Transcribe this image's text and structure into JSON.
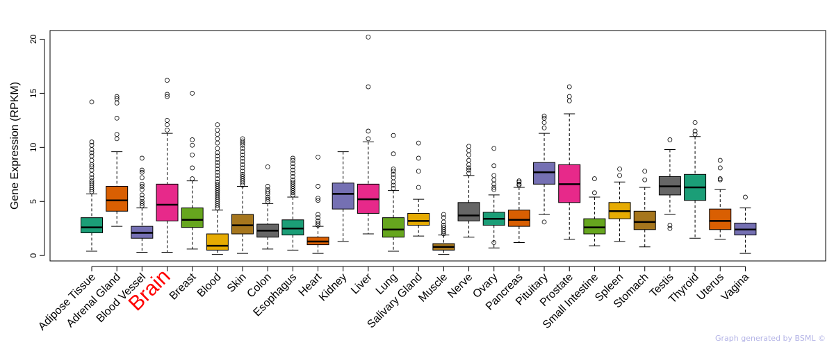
{
  "chart_data": {
    "type": "boxplot",
    "title": "",
    "xlabel": "",
    "ylabel": "Gene Expression (RPKM)",
    "ylim": [
      -0.5,
      20.8
    ],
    "yticks": [
      0,
      5,
      10,
      15,
      20
    ],
    "highlight_category": "Brain",
    "highlight_color": "#ff0000",
    "categories": [
      "Adipose Tissue",
      "Adrenal Gland",
      "Blood Vessel",
      "Brain",
      "Breast",
      "Blood",
      "Skin",
      "Colon",
      "Esophagus",
      "Heart",
      "Kidney",
      "Liver",
      "Lung",
      "Salivary Gland",
      "Muscle",
      "Nerve",
      "Ovary",
      "Pancreas",
      "Pituitary",
      "Prostate",
      "Small Intestine",
      "Spleen",
      "Stomach",
      "Testis",
      "Thyroid",
      "Uterus",
      "Vagina"
    ],
    "series": [
      {
        "name": "Adipose Tissue",
        "color": "#1b9e77",
        "min": 0.4,
        "q1": 2.1,
        "median": 2.6,
        "q3": 3.5,
        "max": 5.7,
        "outliers": [
          14.2,
          10.5,
          10.2,
          9.8,
          9.5,
          9.2,
          8.8,
          8.4,
          8.2,
          7.9,
          7.5,
          7.2,
          6.9,
          6.7,
          6.5,
          6.3,
          6.1,
          5.9
        ]
      },
      {
        "name": "Adrenal Gland",
        "color": "#d95f02",
        "min": 2.7,
        "q1": 4.1,
        "median": 5.1,
        "q3": 6.4,
        "max": 9.6,
        "outliers": [
          14.7,
          14.5,
          14.1,
          12.7,
          11.2,
          10.8
        ]
      },
      {
        "name": "Blood Vessel",
        "color": "#7570b3",
        "min": 0.3,
        "q1": 1.6,
        "median": 2.1,
        "q3": 2.7,
        "max": 4.4,
        "outliers": [
          9.0,
          7.9,
          7.7,
          7.2,
          6.6,
          6.4,
          6.1,
          5.6,
          5.3,
          5.0,
          4.8,
          4.6
        ]
      },
      {
        "name": "Brain",
        "color": "#e7298a",
        "min": 0.3,
        "q1": 3.2,
        "median": 4.7,
        "q3": 6.6,
        "max": 11.3,
        "outliers": [
          16.2,
          14.9,
          14.7,
          12.5,
          12.1,
          11.6
        ]
      },
      {
        "name": "Breast",
        "color": "#66a61e",
        "min": 0.6,
        "q1": 2.6,
        "median": 3.3,
        "q3": 4.4,
        "max": 6.9,
        "outliers": [
          15.0,
          10.7,
          10.2,
          9.3,
          8.1,
          7.1
        ]
      },
      {
        "name": "Blood",
        "color": "#e6ab02",
        "min": 0.1,
        "q1": 0.5,
        "median": 0.9,
        "q3": 2.0,
        "max": 4.2,
        "outliers": [
          12.1,
          11.6,
          11.2,
          10.8,
          10.4,
          9.9,
          9.5,
          9.2,
          8.9,
          8.6,
          8.3,
          8.0,
          7.7,
          7.4,
          7.1,
          6.8,
          6.6,
          6.4,
          6.2,
          6.0,
          5.8,
          5.6,
          5.4,
          5.2,
          5.0,
          4.8,
          4.6,
          4.4
        ]
      },
      {
        "name": "Skin",
        "color": "#a6761d",
        "min": 0.2,
        "q1": 2.0,
        "median": 2.8,
        "q3": 3.8,
        "max": 6.4,
        "outliers": [
          10.8,
          10.6,
          10.4,
          10.2,
          9.9,
          9.6,
          9.3,
          9.0,
          8.7,
          8.4,
          8.1,
          7.8,
          7.5,
          7.3,
          7.1,
          6.9,
          6.7,
          6.5
        ]
      },
      {
        "name": "Colon",
        "color": "#666666",
        "min": 0.6,
        "q1": 1.7,
        "median": 2.3,
        "q3": 2.9,
        "max": 4.8,
        "outliers": [
          8.2,
          6.4,
          6.1,
          5.9,
          5.7,
          5.4,
          5.2,
          5.0
        ]
      },
      {
        "name": "Esophagus",
        "color": "#1b9e77",
        "min": 0.5,
        "q1": 1.9,
        "median": 2.5,
        "q3": 3.3,
        "max": 5.4,
        "outliers": [
          9.0,
          8.8,
          8.5,
          8.2,
          7.9,
          7.6,
          7.3,
          7.0,
          6.8,
          6.6,
          6.4,
          6.2,
          6.0,
          5.8,
          5.6
        ]
      },
      {
        "name": "Heart",
        "color": "#d95f02",
        "min": 0.2,
        "q1": 1.0,
        "median": 1.3,
        "q3": 1.7,
        "max": 2.7,
        "outliers": [
          9.1,
          6.4,
          5.3,
          5.1,
          3.8,
          3.5,
          3.2,
          3.0,
          2.8
        ]
      },
      {
        "name": "Kidney",
        "color": "#7570b3",
        "min": 1.3,
        "q1": 4.3,
        "median": 5.7,
        "q3": 6.7,
        "max": 9.6,
        "outliers": []
      },
      {
        "name": "Liver",
        "color": "#e7298a",
        "min": 2.0,
        "q1": 3.9,
        "median": 5.2,
        "q3": 6.6,
        "max": 10.5,
        "outliers": [
          20.2,
          15.6,
          11.5,
          10.8
        ]
      },
      {
        "name": "Lung",
        "color": "#66a61e",
        "min": 0.4,
        "q1": 1.7,
        "median": 2.4,
        "q3": 3.5,
        "max": 6.0,
        "outliers": [
          11.1,
          9.4,
          8.0,
          7.8,
          7.5,
          7.2,
          6.8,
          6.5,
          6.2
        ]
      },
      {
        "name": "Salivary Gland",
        "color": "#e6ab02",
        "min": 1.8,
        "q1": 2.8,
        "median": 3.2,
        "q3": 3.9,
        "max": 5.2,
        "outliers": [
          10.4,
          9.0,
          7.8,
          6.3
        ]
      },
      {
        "name": "Muscle",
        "color": "#a6761d",
        "min": 0.1,
        "q1": 0.5,
        "median": 0.8,
        "q3": 1.1,
        "max": 1.9,
        "outliers": [
          3.8,
          3.5,
          3.1,
          2.8,
          2.6,
          2.4,
          2.2,
          2.0
        ]
      },
      {
        "name": "Nerve",
        "color": "#666666",
        "min": 1.7,
        "q1": 3.2,
        "median": 3.7,
        "q3": 4.9,
        "max": 7.4,
        "outliers": [
          10.1,
          9.7,
          9.3,
          8.8,
          8.4,
          8.1,
          7.9,
          7.6
        ]
      },
      {
        "name": "Ovary",
        "color": "#1b9e77",
        "min": 0.7,
        "q1": 2.8,
        "median": 3.4,
        "q3": 4.0,
        "max": 5.6,
        "outliers": [
          9.9,
          8.3,
          7.4,
          7.0,
          6.6,
          6.3,
          6.1,
          1.2
        ]
      },
      {
        "name": "Pancreas",
        "color": "#d95f02",
        "min": 1.2,
        "q1": 2.7,
        "median": 3.3,
        "q3": 4.2,
        "max": 6.3,
        "outliers": [
          6.9,
          6.8,
          6.6,
          6.5
        ]
      },
      {
        "name": "Pituitary",
        "color": "#7570b3",
        "min": 3.8,
        "q1": 6.6,
        "median": 7.7,
        "q3": 8.6,
        "max": 11.3,
        "outliers": [
          12.9,
          12.7,
          12.3,
          11.8,
          3.1
        ]
      },
      {
        "name": "Prostate",
        "color": "#e7298a",
        "min": 1.5,
        "q1": 4.9,
        "median": 6.6,
        "q3": 8.4,
        "max": 13.1,
        "outliers": [
          15.6,
          14.7,
          14.3
        ]
      },
      {
        "name": "Small Intestine",
        "color": "#66a61e",
        "min": 0.9,
        "q1": 2.0,
        "median": 2.6,
        "q3": 3.4,
        "max": 5.4,
        "outliers": [
          7.1,
          5.8
        ]
      },
      {
        "name": "Spleen",
        "color": "#e6ab02",
        "min": 1.3,
        "q1": 3.4,
        "median": 4.1,
        "q3": 4.9,
        "max": 6.8,
        "outliers": [
          8.0,
          7.4
        ]
      },
      {
        "name": "Stomach",
        "color": "#a6761d",
        "min": 0.8,
        "q1": 2.4,
        "median": 3.1,
        "q3": 4.1,
        "max": 6.3,
        "outliers": [
          7.8,
          7.0
        ]
      },
      {
        "name": "Testis",
        "color": "#666666",
        "min": 3.8,
        "q1": 5.6,
        "median": 6.4,
        "q3": 7.3,
        "max": 9.8,
        "outliers": [
          10.7,
          2.8,
          2.5
        ]
      },
      {
        "name": "Thyroid",
        "color": "#1b9e77",
        "min": 1.6,
        "q1": 5.1,
        "median": 6.3,
        "q3": 7.5,
        "max": 11.0,
        "outliers": [
          12.3,
          11.5,
          11.2
        ]
      },
      {
        "name": "Uterus",
        "color": "#d95f02",
        "min": 1.5,
        "q1": 2.4,
        "median": 3.2,
        "q3": 4.3,
        "max": 6.1,
        "outliers": [
          8.8,
          8.1,
          7.1,
          7.0
        ]
      },
      {
        "name": "Vagina",
        "color": "#7570b3",
        "min": 0.2,
        "q1": 1.9,
        "median": 2.4,
        "q3": 3.0,
        "max": 4.4,
        "outliers": [
          5.4
        ]
      }
    ]
  },
  "footer": {
    "credit": "Graph generated by BSML ©"
  }
}
